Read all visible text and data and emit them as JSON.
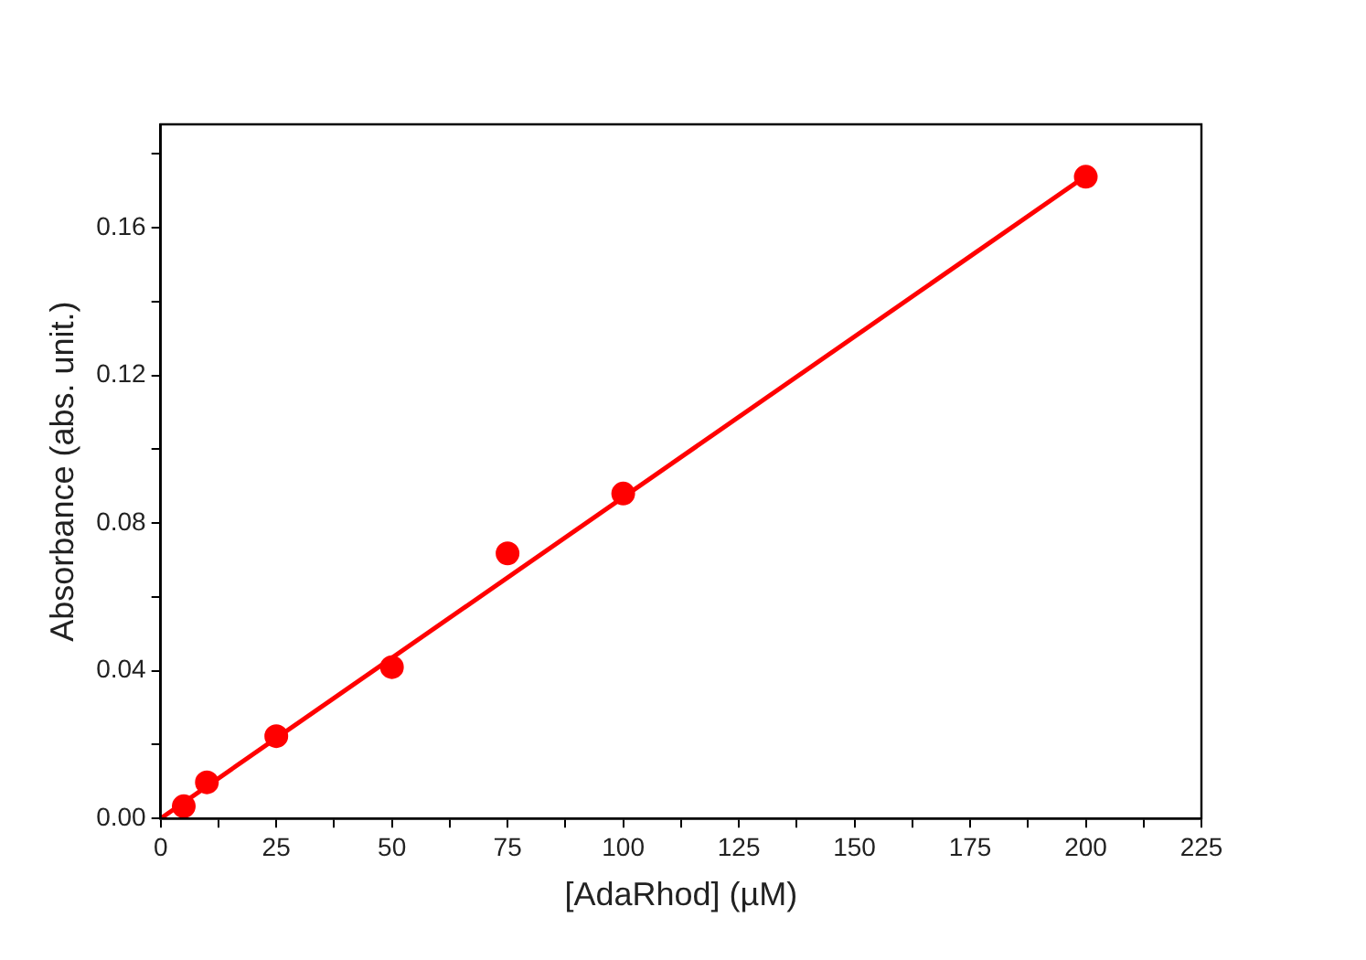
{
  "chart_data": {
    "type": "scatter",
    "xlabel": "[AdaRhod] (µM)",
    "ylabel": "Absorbance (abs. unit.)",
    "xlim": [
      0,
      225
    ],
    "ylim": [
      0,
      0.188
    ],
    "xticks": [
      0,
      {
        "value": 12.5,
        "label": null
      },
      25,
      {
        "value": 37.5,
        "label": null
      },
      50,
      {
        "value": 62.5,
        "label": null
      },
      75,
      {
        "value": 87.5,
        "label": null
      },
      100,
      {
        "value": 112.5,
        "label": null
      },
      125,
      {
        "value": 137.5,
        "label": null
      },
      150,
      {
        "value": 162.5,
        "label": null
      },
      175,
      {
        "value": 187.5,
        "label": null
      },
      200,
      {
        "value": 212.5,
        "label": null
      },
      225
    ],
    "yticks": [
      {
        "value": 0,
        "label": "0.00"
      },
      {
        "value": 0.02,
        "label": null
      },
      {
        "value": 0.04,
        "label": "0.04"
      },
      {
        "value": 0.06,
        "label": null
      },
      {
        "value": 0.08,
        "label": "0.08"
      },
      {
        "value": 0.1,
        "label": null
      },
      {
        "value": 0.12,
        "label": "0.12"
      },
      {
        "value": 0.14,
        "label": null
      },
      {
        "value": 0.16,
        "label": "0.16"
      },
      {
        "value": 0.18,
        "label": null
      }
    ],
    "grid": false,
    "legend": false,
    "marker": "circle",
    "series": [
      {
        "color": "#ff0000",
        "x": [
          5,
          10,
          25,
          50,
          75,
          100,
          200
        ],
        "values": [
          0.0033,
          0.0098,
          0.0223,
          0.041,
          0.0718,
          0.088,
          0.1738
        ]
      },
      {
        "type": "line",
        "color": "#ff0000",
        "marker": "none",
        "line_style": "solid",
        "x": [
          0,
          200
        ],
        "values": [
          0,
          0.174
        ]
      }
    ]
  }
}
